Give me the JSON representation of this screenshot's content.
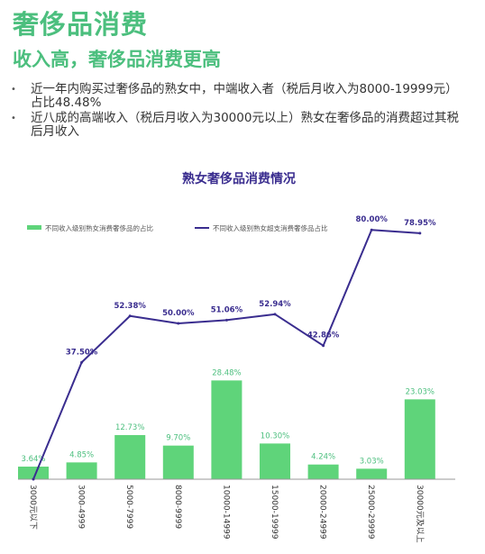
{
  "header": {
    "title": "奢侈品消费",
    "subtitle": "收入高，奢侈品消费更高"
  },
  "bullets": [
    "近一年内购买过奢侈品的熟女中，中端收入者（税后月收入为8000-19999元）占比48.48%",
    "近八成的高端收入（税后月收入为30000元以上）熟女在奢侈品的消费超过其税后月收入"
  ],
  "bullet_marker": "•",
  "colors": {
    "accent": "#4cbf7e",
    "bar": "#5fd47a",
    "line": "#3a2d8f",
    "bar_label": "#4cbf7e",
    "line_label": "#3a2d8f"
  },
  "chart_data": {
    "type": "bar+line",
    "title": "熟女奢侈品消费情况",
    "categories": [
      "3000元以下",
      "3000-4999",
      "5000-7999",
      "8000-9999",
      "10000-14999",
      "15000-19999",
      "20000-24999",
      "25000-29999",
      "30000元及以上"
    ],
    "series": [
      {
        "name": "不同收入级别熟女消费奢侈品的占比",
        "type": "bar",
        "values": [
          3.64,
          4.85,
          12.73,
          9.7,
          28.48,
          10.3,
          4.24,
          3.03,
          23.03
        ],
        "labels": [
          "3.64%",
          "4.85%",
          "12.73%",
          "9.70%",
          "28.48%",
          "10.30%",
          "4.24%",
          "3.03%",
          "23.03%"
        ]
      },
      {
        "name": "不同收入级别熟女超支消费奢侈品占比",
        "type": "line",
        "values": [
          0,
          37.5,
          52.38,
          50.0,
          51.06,
          52.94,
          42.86,
          80.0,
          78.95
        ],
        "labels": [
          "",
          "37.50%",
          "52.38%",
          "50.00%",
          "51.06%",
          "52.94%",
          "42.86%",
          "80.00%",
          "78.95%"
        ]
      }
    ],
    "legend": "top",
    "grid": false
  }
}
